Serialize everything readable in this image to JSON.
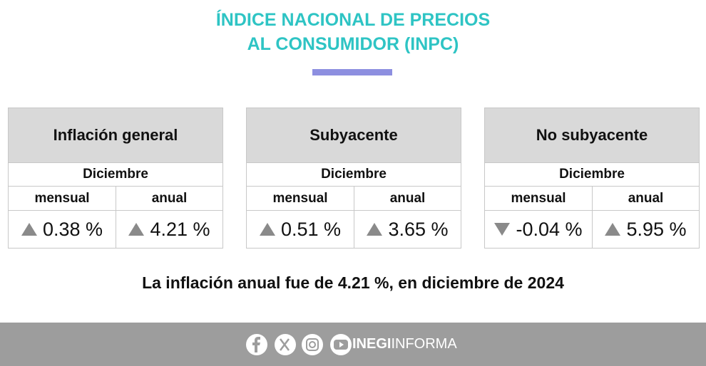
{
  "header": {
    "title_line1": "ÍNDICE NACIONAL DE PRECIOS",
    "title_line2": "AL CONSUMIDOR (INPC)"
  },
  "cards": [
    {
      "title": "Inflación general",
      "period": "Diciembre",
      "col1": "mensual",
      "col2": "anual",
      "value1": "0.38 %",
      "trend1": "up",
      "value2": "4.21 %",
      "trend2": "up"
    },
    {
      "title": "Subyacente",
      "period": "Diciembre",
      "col1": "mensual",
      "col2": "anual",
      "value1": "0.51 %",
      "trend1": "up",
      "value2": "3.65 %",
      "trend2": "up"
    },
    {
      "title": "No subyacente",
      "period": "Diciembre",
      "col1": "mensual",
      "col2": "anual",
      "value1": "-0.04 %",
      "trend1": "down",
      "value2": "5.95 %",
      "trend2": "up"
    }
  ],
  "statement": "La inflación anual fue de 4.21 %, en diciembre de 2024",
  "footer": {
    "brand_bold": "INEGI",
    "brand_light": "INFORMA"
  }
}
